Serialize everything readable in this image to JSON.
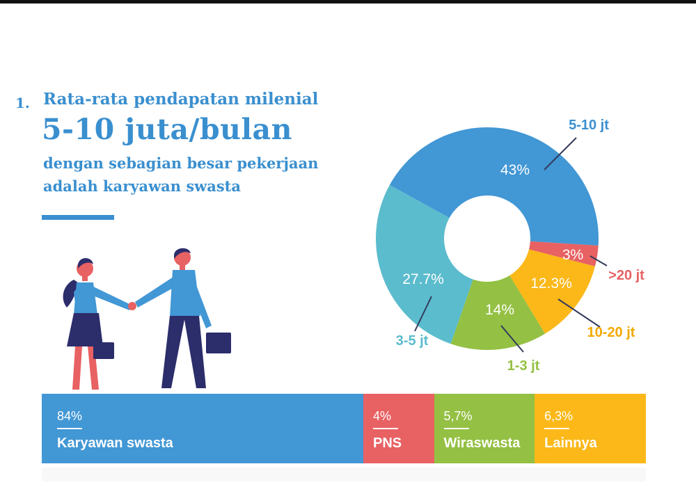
{
  "header": {
    "number": "1.",
    "line1": "Rata-rata pendapatan milenial",
    "headline": "5-10 juta/bulan",
    "sub1": "dengan sebagian besar pekerjaan",
    "sub2": "adalah karyawan swasta"
  },
  "colors": {
    "title": "#3a8fcf",
    "blue": "#4297d5",
    "teal": "#5bbccd",
    "green": "#94c043",
    "yellow": "#fbb818",
    "red": "#e86163",
    "label_dark_blue": "#3a8fcf"
  },
  "chart_data": [
    {
      "type": "pie",
      "variant": "donut",
      "slices": [
        {
          "label": "5-10 jt",
          "value": 43,
          "value_label": "43%",
          "color": "#4297d5"
        },
        {
          "label": ">20 jt",
          "value": 3,
          "value_label": "3%",
          "color": "#e86163"
        },
        {
          "label": "10-20 jt",
          "value": 12.3,
          "value_label": "12.3%",
          "color": "#fbb818"
        },
        {
          "label": "1-3 jt",
          "value": 14,
          "value_label": "14%",
          "color": "#94c043"
        },
        {
          "label": "3-5 jt",
          "value": 27.7,
          "value_label": "27.7%",
          "color": "#5bbccd"
        }
      ]
    },
    {
      "type": "bar",
      "variant": "stacked-100",
      "segments": [
        {
          "label": "Karyawan swasta",
          "value": 84,
          "value_label": "84%",
          "color": "#4297d5"
        },
        {
          "label": "PNS",
          "value": 4,
          "value_label": "4%",
          "color": "#e86163"
        },
        {
          "label": "Wiraswasta",
          "value": 5.7,
          "value_label": "5,7%",
          "color": "#94c043"
        },
        {
          "label": "Lainnya",
          "value": 6.3,
          "value_label": "6,3%",
          "color": "#fbb818"
        }
      ]
    }
  ]
}
